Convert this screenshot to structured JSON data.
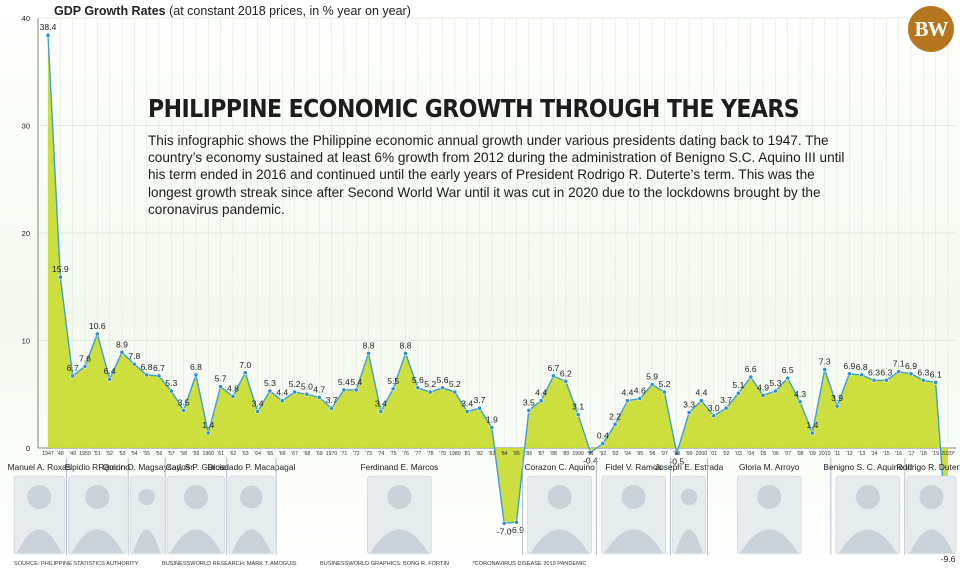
{
  "chart_data": {
    "type": "area",
    "title": "GDP Growth Rates",
    "subtitle": "(at constant 2018 prices, in % year on year)",
    "ylim": [
      -10,
      40
    ],
    "yticks": [
      0,
      10,
      20,
      30,
      40
    ],
    "grid": true,
    "x": [
      "1947",
      "'48",
      "'49",
      "1950",
      "'51",
      "'52",
      "'53",
      "'54",
      "'55",
      "'56",
      "'57",
      "'58",
      "'59",
      "1960",
      "'61",
      "'62",
      "'63",
      "'64",
      "'65",
      "'66",
      "'67",
      "'68",
      "'69",
      "1970",
      "'71",
      "'72",
      "'73",
      "'74",
      "'75",
      "'76",
      "'77",
      "'78",
      "'79",
      "1980",
      "'81",
      "'82",
      "'83",
      "'84",
      "'85",
      "'86",
      "'87",
      "'88",
      "'89",
      "1990",
      "'91",
      "'92",
      "'93",
      "'94",
      "'95",
      "'96",
      "'97",
      "'98",
      "'99",
      "2000",
      "'01",
      "'02",
      "'03",
      "'04",
      "'05",
      "'06",
      "'07",
      "'08",
      "'09",
      "2010",
      "'11",
      "'12",
      "'13",
      "'14",
      "'15",
      "'16",
      "'17",
      "'18",
      "'19",
      "2020*"
    ],
    "values": [
      38.4,
      15.9,
      6.7,
      7.6,
      10.6,
      6.4,
      8.9,
      7.8,
      6.8,
      6.7,
      5.3,
      3.5,
      6.8,
      1.4,
      5.7,
      4.8,
      7.0,
      3.4,
      5.3,
      4.4,
      5.2,
      5.0,
      4.7,
      3.7,
      5.4,
      5.4,
      8.8,
      3.4,
      5.5,
      8.8,
      5.6,
      5.2,
      5.6,
      5.2,
      3.4,
      3.7,
      1.9,
      -7.0,
      -6.9,
      3.5,
      4.4,
      6.7,
      6.2,
      3.1,
      -0.4,
      0.4,
      2.2,
      4.4,
      4.6,
      5.9,
      5.2,
      -0.5,
      3.3,
      4.4,
      3.0,
      3.7,
      5.1,
      6.6,
      4.9,
      5.3,
      6.5,
      4.3,
      1.4,
      7.3,
      3.9,
      6.9,
      6.8,
      6.3,
      6.3,
      7.1,
      6.9,
      6.3,
      6.1,
      -9.6
    ],
    "value_labels": [
      "38.4",
      "15.9",
      "6.7",
      "7.6",
      "10.6",
      "6.4",
      "8.9",
      "7.8",
      "6.8",
      "6.7",
      "5.3",
      "3.5",
      "6.8",
      "1.4",
      "5.7",
      "4.8",
      "7.0",
      "3.4",
      "5.3",
      "4.4",
      "5.2",
      "5.0",
      "4.7",
      "3.7",
      "5.4",
      "5.4",
      "8.8",
      "3.4",
      "5.5",
      "8.8",
      "5.6",
      "5.2",
      "5.6",
      "5.2",
      "3.4",
      "3.7",
      "1.9",
      "-7.0",
      "-6.9",
      "3.5",
      "4.4",
      "6.7",
      "6.2",
      "3.1",
      "-0.4",
      "0.4",
      "2.2",
      "4.4",
      "4.6",
      "5.9",
      "5.2",
      "-0.5",
      "3.3",
      "4.4",
      "3.0",
      "3.7",
      "5.1",
      "6.6",
      "4.9",
      "5.3",
      "6.5",
      "4.3",
      "1.4",
      "7.3",
      "3.9",
      "6.9",
      "6.8",
      "6.3",
      "6.3",
      "7.1",
      "6.9",
      "6.3",
      "6.1",
      "-9.6"
    ],
    "presidents": [
      {
        "name": "Manuel A. Roxas",
        "from": "1947",
        "to": "'48"
      },
      {
        "name": "Elpidio R. Quirino",
        "from": "'49",
        "to": "'53"
      },
      {
        "name": "Ramon D. Magsaysay, Sr.",
        "from": "'54",
        "to": "'56"
      },
      {
        "name": "Carlos P. Garcia",
        "from": "'57",
        "to": "'61"
      },
      {
        "name": "Diosdado P. Macapagal",
        "from": "'62",
        "to": "'65"
      },
      {
        "name": "Ferdinand E. Marcos",
        "from": "'66",
        "to": "'85"
      },
      {
        "name": "Corazon C. Aquino",
        "from": "'86",
        "to": "'91"
      },
      {
        "name": "Fidel V. Ramos",
        "from": "'92",
        "to": "'97"
      },
      {
        "name": "Joseph E. Estrada",
        "from": "'98",
        "to": "2000"
      },
      {
        "name": "Gloria M. Arroyo",
        "from": "'01",
        "to": "2010"
      },
      {
        "name": "Benigno S. C. Aquino III",
        "from": "'11",
        "to": "'16"
      },
      {
        "name": "Rodrigo R. Duterte",
        "from": "'17",
        "to": "2020*"
      }
    ],
    "colors": {
      "fill": "#c8dc2e",
      "line": "#3f9fd4",
      "marker": "#2f90cc",
      "grid": "#d7e6d2",
      "divider": "#9cb0c0"
    }
  },
  "header": {
    "chart_title": "GDP Growth Rates",
    "chart_subtitle": "(at constant 2018 prices, in % year on year)",
    "logo": "BW"
  },
  "infographic": {
    "headline": "PHILIPPINE ECONOMIC GROWTH THROUGH THE YEARS",
    "description": "This infographic shows the Philippine economic annual growth under various presidents dating back to 1947. The country’s economy sustained at least 6% growth from 2012 during the administration of Benigno S.C. Aquino III until his term ended in 2016 and continued until the early years of President Rodrigo R. Duterte’s term. This was the longest growth streak since after Second World War until it was cut in 2020 due to the lockdowns brought by the coronavirus pandemic."
  },
  "footer": {
    "source": "SOURCE: PHILIPPINE STATISTICS AUTHORITY",
    "research": "BUSINESSWORLD RESEARCH: MARK T. AMOGUIS",
    "graphics": "BUSINESSWORLD GRAPHICS: BONG R. FORTIN",
    "note": "*CORONAVIRUS DISEASE 2019 PANDEMIC"
  }
}
